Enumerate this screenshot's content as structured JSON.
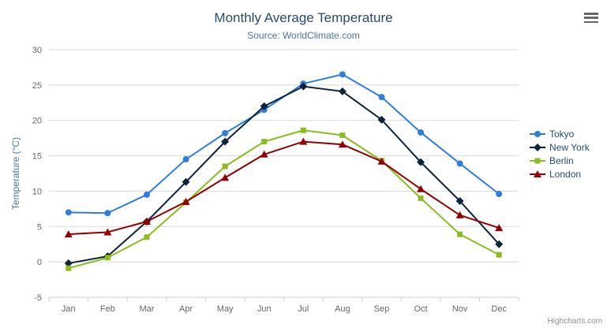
{
  "chart": {
    "title": "Monthly Average Temperature",
    "subtitle": "Source: WorldClimate.com",
    "credits": "Highcharts.com"
  },
  "chart_data": {
    "type": "line",
    "title": "Monthly Average Temperature",
    "subtitle": "Source: WorldClimate.com",
    "categories": [
      "Jan",
      "Feb",
      "Mar",
      "Apr",
      "May",
      "Jun",
      "Jul",
      "Aug",
      "Sep",
      "Oct",
      "Nov",
      "Dec"
    ],
    "series": [
      {
        "name": "Tokyo",
        "color": "#2f7ed8",
        "marker": "circle",
        "values": [
          7.0,
          6.9,
          9.5,
          14.5,
          18.2,
          21.5,
          25.2,
          26.5,
          23.3,
          18.3,
          13.9,
          9.6
        ]
      },
      {
        "name": "New York",
        "color": "#0d233a",
        "marker": "diamond",
        "values": [
          -0.2,
          0.8,
          5.7,
          11.3,
          17.0,
          22.0,
          24.8,
          24.1,
          20.1,
          14.1,
          8.6,
          2.5
        ]
      },
      {
        "name": "Berlin",
        "color": "#8bbc21",
        "marker": "square",
        "values": [
          -0.9,
          0.6,
          3.5,
          8.4,
          13.5,
          17.0,
          18.6,
          17.9,
          14.3,
          9.0,
          3.9,
          1.0
        ]
      },
      {
        "name": "London",
        "color": "#910000",
        "marker": "triangle",
        "values": [
          3.9,
          4.2,
          5.7,
          8.5,
          11.9,
          15.2,
          17.0,
          16.6,
          14.2,
          10.3,
          6.6,
          4.8
        ]
      }
    ],
    "xlabel": "",
    "ylabel": "Temperature (°C)",
    "ylim": [
      -5,
      30
    ],
    "yticks": [
      -5,
      0,
      5,
      10,
      15,
      20,
      25,
      30
    ],
    "grid": true,
    "legend_position": "right",
    "colors": {
      "title": "#274b6d",
      "subtitle": "#4d759e",
      "gridline": "#d8d8d8",
      "axis_line": "#c0d0e0",
      "tick_label": "#666666",
      "credits": "#909090"
    }
  }
}
